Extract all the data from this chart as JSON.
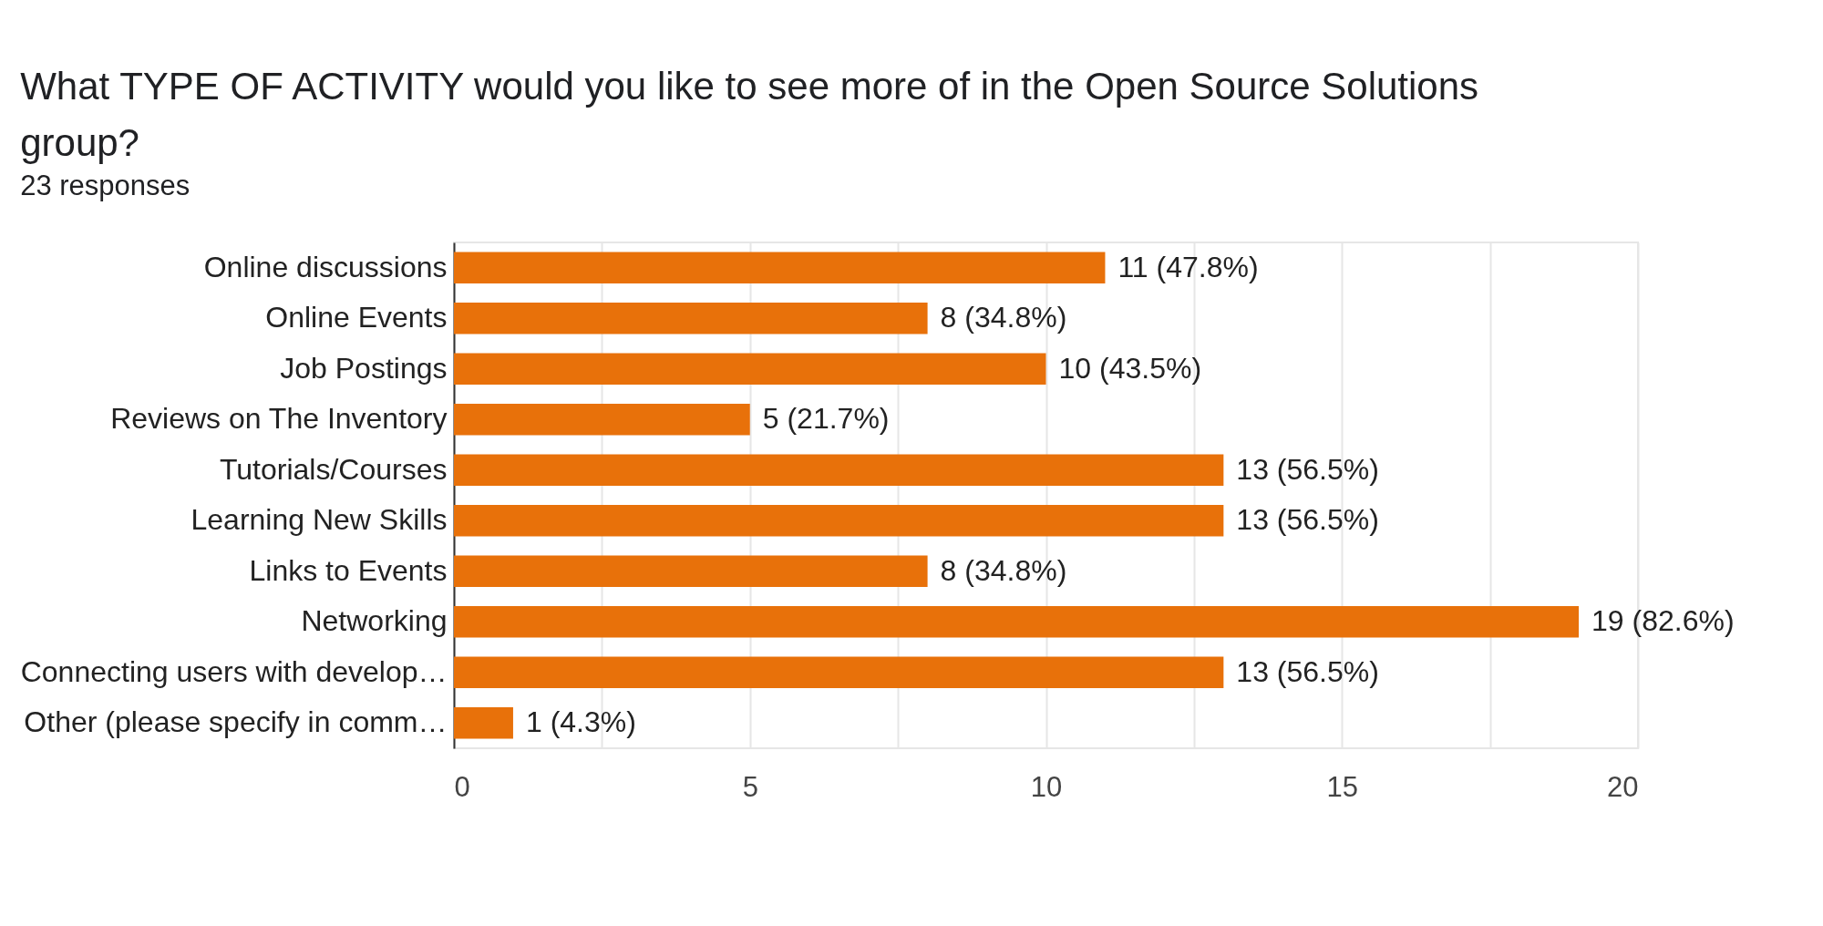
{
  "chart_data": {
    "type": "bar",
    "orientation": "horizontal",
    "title": "What TYPE OF ACTIVITY would you like to see more of in the Open Source Solutions group?",
    "subtitle": "23 responses",
    "categories": [
      "Online discussions",
      "Online Events",
      "Job Postings",
      "Reviews on The Inventory",
      "Tutorials/Courses",
      "Learning New Skills",
      "Links to Events",
      "Networking",
      "Connecting users with develop…",
      "Other (please specify in comm…"
    ],
    "values": [
      11,
      8,
      10,
      5,
      13,
      13,
      8,
      19,
      13,
      1
    ],
    "value_labels": [
      "11 (47.8%)",
      "8 (34.8%)",
      "10 (43.5%)",
      "5 (21.7%)",
      "13 (56.5%)",
      "13 (56.5%)",
      "8 (34.8%)",
      "19 (82.6%)",
      "13 (56.5%)",
      "1 (4.3%)"
    ],
    "color": "#e8710a",
    "xlim": [
      0,
      20
    ],
    "xticks": [
      0,
      {
        "value": 2.5,
        "label": null
      },
      5,
      {
        "value": 7.5,
        "label": null
      },
      10,
      {
        "value": 12.5,
        "label": null
      },
      15,
      {
        "value": 17.5,
        "label": null
      },
      20
    ],
    "grid": "x"
  }
}
